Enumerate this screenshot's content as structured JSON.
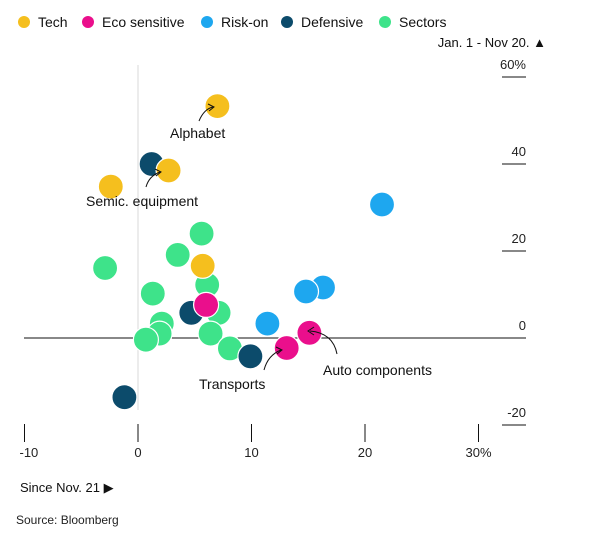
{
  "chart_data": {
    "type": "scatter",
    "x_axis_note": "Since Nov. 21 ▶",
    "y_axis_note": "Jan. 1 - Nov 20. ▲",
    "source": "Source: Bloomberg",
    "xlim": [
      -10,
      30
    ],
    "ylim": [
      -20,
      60
    ],
    "x_ticks": [
      {
        "value": -10,
        "label": "-10"
      },
      {
        "value": 0,
        "label": "0"
      },
      {
        "value": 10,
        "label": "10"
      },
      {
        "value": 20,
        "label": "20"
      },
      {
        "value": 30,
        "label": "30%"
      }
    ],
    "y_ticks": [
      {
        "value": 60,
        "label": "60%"
      },
      {
        "value": 40,
        "label": "40"
      },
      {
        "value": 20,
        "label": "20"
      },
      {
        "value": 0,
        "label": "0"
      },
      {
        "value": -20,
        "label": "-20"
      }
    ],
    "legend_placement": "top",
    "series": [
      {
        "name": "Tech",
        "color": "#f5bf1e",
        "points": [
          {
            "x": 7.0,
            "y": 53.3
          },
          {
            "x": 2.7,
            "y": 38.5
          },
          {
            "x": -2.4,
            "y": 34.8
          },
          {
            "x": 5.7,
            "y": 16.6
          }
        ]
      },
      {
        "name": "Eco sensitive",
        "color": "#ea0f8c",
        "points": [
          {
            "x": 6.0,
            "y": 7.6
          },
          {
            "x": 15.1,
            "y": 1.2
          },
          {
            "x": 13.1,
            "y": -2.3
          }
        ]
      },
      {
        "name": "Risk-on",
        "color": "#1ea7ef",
        "points": [
          {
            "x": 21.5,
            "y": 30.7
          },
          {
            "x": 16.3,
            "y": 11.6
          },
          {
            "x": 14.8,
            "y": 10.7
          },
          {
            "x": 11.4,
            "y": 3.3
          }
        ]
      },
      {
        "name": "Defensive",
        "color": "#0c4b6b",
        "points": [
          {
            "x": 1.2,
            "y": 40.0
          },
          {
            "x": 4.7,
            "y": 5.8
          },
          {
            "x": 9.9,
            "y": -4.2
          },
          {
            "x": -1.2,
            "y": -13.6
          }
        ]
      },
      {
        "name": "Sectors",
        "color": "#3ee38a",
        "points": [
          {
            "x": 5.6,
            "y": 24.0
          },
          {
            "x": 3.5,
            "y": 19.1
          },
          {
            "x": -2.9,
            "y": 16.1
          },
          {
            "x": 6.1,
            "y": 12.2
          },
          {
            "x": 1.3,
            "y": 10.2
          },
          {
            "x": 7.1,
            "y": 5.8
          },
          {
            "x": 2.1,
            "y": 3.3
          },
          {
            "x": 1.9,
            "y": 1.0
          },
          {
            "x": 6.4,
            "y": 1.0
          },
          {
            "x": 0.7,
            "y": -0.4
          },
          {
            "x": 8.1,
            "y": -2.4
          }
        ]
      }
    ],
    "annotations": [
      {
        "text": "Alphabet",
        "x": 7.0,
        "y": 53.3
      },
      {
        "text": "Semic. equipment",
        "x": 2.7,
        "y": 38.5
      },
      {
        "text": "Transports",
        "x": 13.1,
        "y": -2.3
      },
      {
        "text": "Auto components",
        "x": 15.1,
        "y": 1.2
      }
    ]
  }
}
